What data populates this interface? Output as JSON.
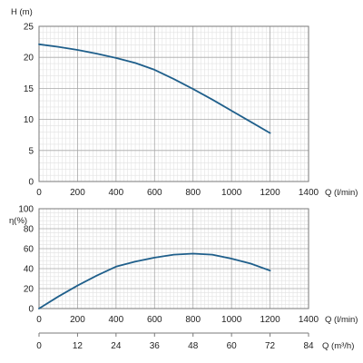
{
  "chart_data": [
    {
      "type": "line",
      "ylabel": "H (m)",
      "xlabel": "Q (l/min)",
      "xlim": [
        0,
        1400
      ],
      "ylim": [
        0,
        25
      ],
      "xticks": [
        0,
        200,
        400,
        600,
        800,
        1000,
        1200,
        1400
      ],
      "yticks": [
        0,
        5,
        10,
        15,
        20,
        25
      ],
      "grid": true,
      "series": [
        {
          "x": [
            0,
            100,
            200,
            300,
            400,
            500,
            600,
            700,
            800,
            900,
            1000,
            1100,
            1200
          ],
          "y": [
            22.1,
            21.7,
            21.2,
            20.6,
            19.9,
            19.1,
            18.0,
            16.5,
            14.9,
            13.2,
            11.4,
            9.6,
            7.8
          ]
        }
      ],
      "color": "#1f5f8b"
    },
    {
      "type": "line",
      "ylabel": "η(%)",
      "xlabel": "Q (l/min)",
      "xlim": [
        0,
        1400
      ],
      "ylim": [
        0,
        100
      ],
      "xticks": [
        0,
        200,
        400,
        600,
        800,
        1000,
        1200,
        1400
      ],
      "yticks": [
        0,
        20,
        40,
        60,
        80,
        100
      ],
      "grid": true,
      "secondary_x": {
        "label": "Q (m³/h)",
        "ticks": [
          0,
          12,
          24,
          36,
          48,
          60,
          72,
          84
        ]
      },
      "series": [
        {
          "x": [
            0,
            100,
            200,
            300,
            400,
            500,
            600,
            700,
            800,
            900,
            1000,
            1100,
            1200
          ],
          "y": [
            0,
            12,
            23,
            33,
            42,
            47,
            51,
            54,
            55,
            54,
            50,
            45,
            38
          ]
        }
      ],
      "color": "#1f5f8b"
    }
  ]
}
